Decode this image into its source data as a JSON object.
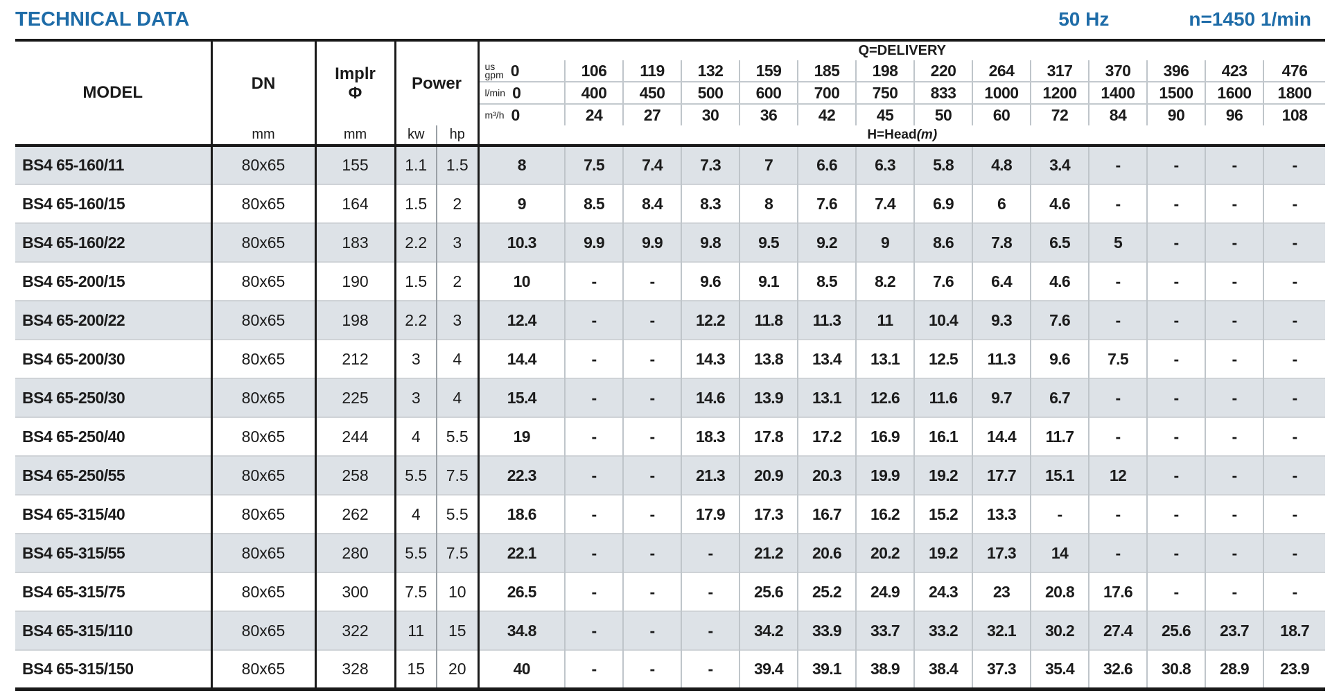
{
  "colors": {
    "accent": "#1e6ca8"
  },
  "header": {
    "title": "TECHNICAL DATA",
    "frequency": "50 Hz",
    "speed": "n=1450 1/min"
  },
  "table": {
    "corner": {
      "model_label": "MODEL",
      "dn_label": "DN",
      "dn_unit": "mm",
      "implr_label": "Implr\nΦ",
      "implr_unit": "mm",
      "power_label": "Power",
      "kw_label": "kw",
      "hp_label": "hp"
    },
    "delivery": {
      "title": "Q=DELIVERY",
      "head_label": "H=Head",
      "head_unit": "(m)",
      "unit_rows": [
        {
          "unit": "us\ngpm",
          "values": [
            "0",
            "106",
            "119",
            "132",
            "159",
            "185",
            "198",
            "220",
            "264",
            "317",
            "370",
            "396",
            "423",
            "476"
          ]
        },
        {
          "unit": "l/min",
          "values": [
            "0",
            "400",
            "450",
            "500",
            "600",
            "700",
            "750",
            "833",
            "1000",
            "1200",
            "1400",
            "1500",
            "1600",
            "1800"
          ]
        },
        {
          "unit": "m³/h",
          "values": [
            "0",
            "24",
            "27",
            "30",
            "36",
            "42",
            "45",
            "50",
            "60",
            "72",
            "84",
            "90",
            "96",
            "108"
          ]
        }
      ]
    },
    "rows": [
      {
        "model": "BS4 65-160/11",
        "dn": "80x65",
        "implr": "155",
        "kw": "1.1",
        "hp": "1.5",
        "head": [
          "8",
          "7.5",
          "7.4",
          "7.3",
          "7",
          "6.6",
          "6.3",
          "5.8",
          "4.8",
          "3.4",
          "-",
          "-",
          "-",
          "-"
        ]
      },
      {
        "model": "BS4 65-160/15",
        "dn": "80x65",
        "implr": "164",
        "kw": "1.5",
        "hp": "2",
        "head": [
          "9",
          "8.5",
          "8.4",
          "8.3",
          "8",
          "7.6",
          "7.4",
          "6.9",
          "6",
          "4.6",
          "-",
          "-",
          "-",
          "-"
        ]
      },
      {
        "model": "BS4 65-160/22",
        "dn": "80x65",
        "implr": "183",
        "kw": "2.2",
        "hp": "3",
        "head": [
          "10.3",
          "9.9",
          "9.9",
          "9.8",
          "9.5",
          "9.2",
          "9",
          "8.6",
          "7.8",
          "6.5",
          "5",
          "-",
          "-",
          "-"
        ]
      },
      {
        "model": "BS4 65-200/15",
        "dn": "80x65",
        "implr": "190",
        "kw": "1.5",
        "hp": "2",
        "head": [
          "10",
          "-",
          "-",
          "9.6",
          "9.1",
          "8.5",
          "8.2",
          "7.6",
          "6.4",
          "4.6",
          "-",
          "-",
          "-",
          "-"
        ]
      },
      {
        "model": "BS4 65-200/22",
        "dn": "80x65",
        "implr": "198",
        "kw": "2.2",
        "hp": "3",
        "head": [
          "12.4",
          "-",
          "-",
          "12.2",
          "11.8",
          "11.3",
          "11",
          "10.4",
          "9.3",
          "7.6",
          "-",
          "-",
          "-",
          "-"
        ]
      },
      {
        "model": "BS4 65-200/30",
        "dn": "80x65",
        "implr": "212",
        "kw": "3",
        "hp": "4",
        "head": [
          "14.4",
          "-",
          "-",
          "14.3",
          "13.8",
          "13.4",
          "13.1",
          "12.5",
          "11.3",
          "9.6",
          "7.5",
          "-",
          "-",
          "-"
        ]
      },
      {
        "model": "BS4 65-250/30",
        "dn": "80x65",
        "implr": "225",
        "kw": "3",
        "hp": "4",
        "head": [
          "15.4",
          "-",
          "-",
          "14.6",
          "13.9",
          "13.1",
          "12.6",
          "11.6",
          "9.7",
          "6.7",
          "-",
          "-",
          "-",
          "-"
        ]
      },
      {
        "model": "BS4 65-250/40",
        "dn": "80x65",
        "implr": "244",
        "kw": "4",
        "hp": "5.5",
        "head": [
          "19",
          "-",
          "-",
          "18.3",
          "17.8",
          "17.2",
          "16.9",
          "16.1",
          "14.4",
          "11.7",
          "-",
          "-",
          "-",
          "-"
        ]
      },
      {
        "model": "BS4 65-250/55",
        "dn": "80x65",
        "implr": "258",
        "kw": "5.5",
        "hp": "7.5",
        "head": [
          "22.3",
          "-",
          "-",
          "21.3",
          "20.9",
          "20.3",
          "19.9",
          "19.2",
          "17.7",
          "15.1",
          "12",
          "-",
          "-",
          "-"
        ]
      },
      {
        "model": "BS4 65-315/40",
        "dn": "80x65",
        "implr": "262",
        "kw": "4",
        "hp": "5.5",
        "head": [
          "18.6",
          "-",
          "-",
          "17.9",
          "17.3",
          "16.7",
          "16.2",
          "15.2",
          "13.3",
          "-",
          "-",
          "-",
          "-",
          "-"
        ]
      },
      {
        "model": "BS4 65-315/55",
        "dn": "80x65",
        "implr": "280",
        "kw": "5.5",
        "hp": "7.5",
        "head": [
          "22.1",
          "-",
          "-",
          "-",
          "21.2",
          "20.6",
          "20.2",
          "19.2",
          "17.3",
          "14",
          "-",
          "-",
          "-",
          "-"
        ]
      },
      {
        "model": "BS4 65-315/75",
        "dn": "80x65",
        "implr": "300",
        "kw": "7.5",
        "hp": "10",
        "head": [
          "26.5",
          "-",
          "-",
          "-",
          "25.6",
          "25.2",
          "24.9",
          "24.3",
          "23",
          "20.8",
          "17.6",
          "-",
          "-",
          "-"
        ]
      },
      {
        "model": "BS4 65-315/110",
        "dn": "80x65",
        "implr": "322",
        "kw": "11",
        "hp": "15",
        "head": [
          "34.8",
          "-",
          "-",
          "-",
          "34.2",
          "33.9",
          "33.7",
          "33.2",
          "32.1",
          "30.2",
          "27.4",
          "25.6",
          "23.7",
          "18.7"
        ]
      },
      {
        "model": "BS4 65-315/150",
        "dn": "80x65",
        "implr": "328",
        "kw": "15",
        "hp": "20",
        "head": [
          "40",
          "-",
          "-",
          "-",
          "39.4",
          "39.1",
          "38.9",
          "38.4",
          "37.3",
          "35.4",
          "32.6",
          "30.8",
          "28.9",
          "23.9"
        ]
      }
    ]
  }
}
